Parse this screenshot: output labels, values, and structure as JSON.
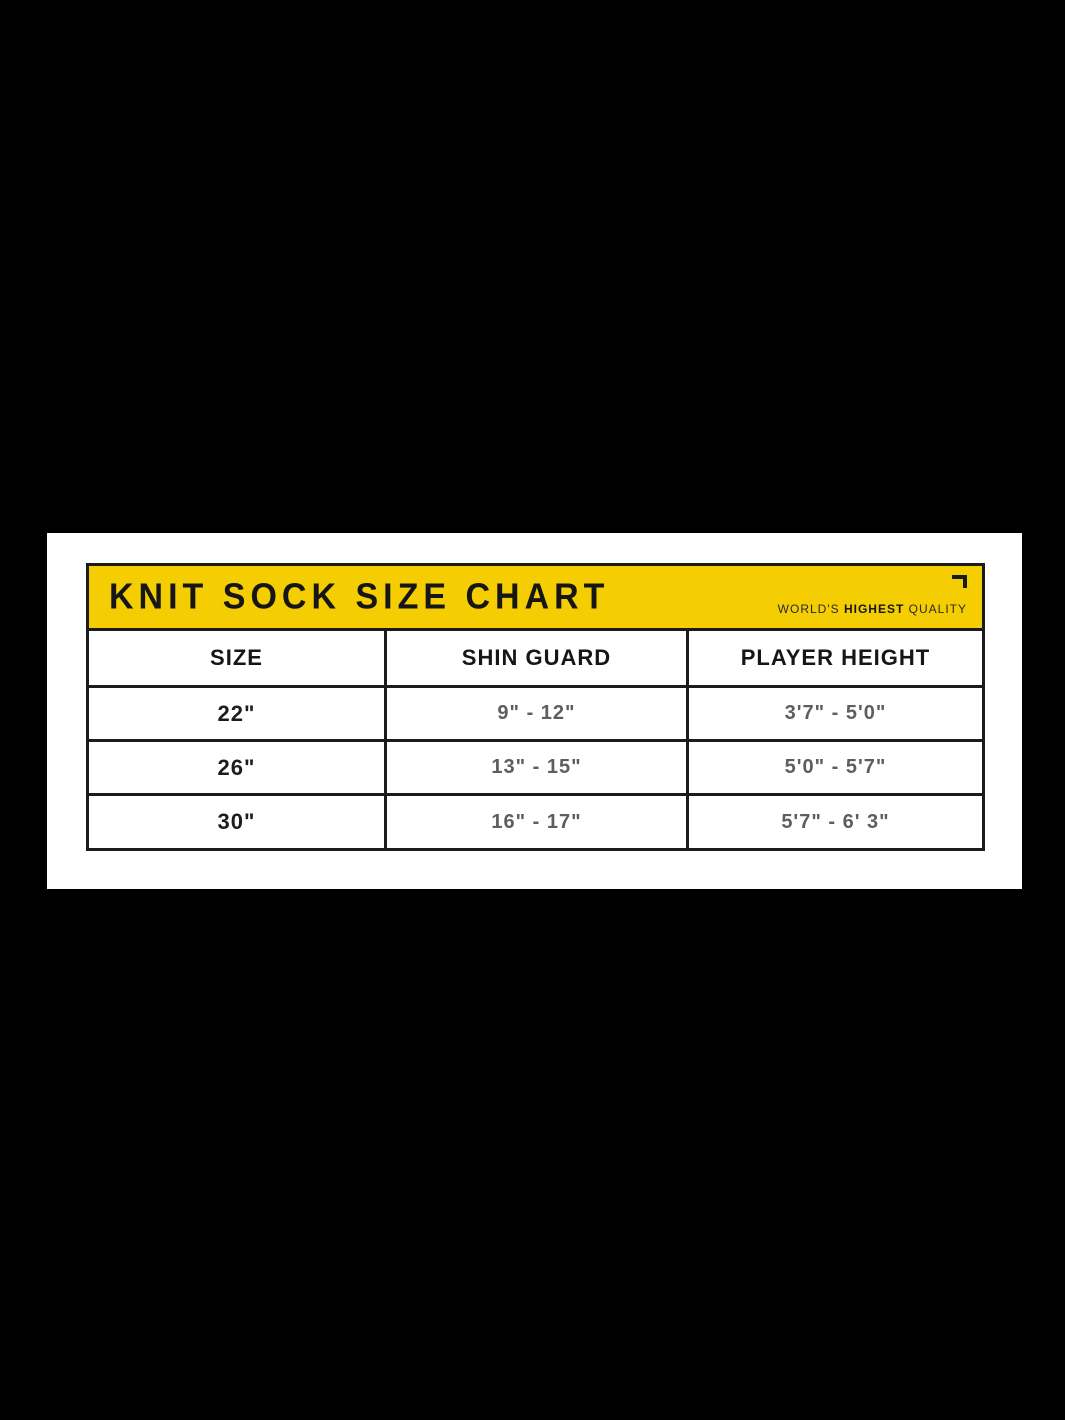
{
  "banner": {
    "title": "KNIT SOCK SIZE CHART",
    "tagline_prefix": "WORLD'S ",
    "tagline_bold": "HIGHEST",
    "tagline_suffix": " QUALITY"
  },
  "chart_data": {
    "type": "table",
    "title": "KNIT SOCK SIZE CHART",
    "columns": [
      "SIZE",
      "SHIN GUARD",
      "PLAYER HEIGHT"
    ],
    "rows": [
      [
        "22\"",
        "9\" - 12\"",
        "3'7\" - 5'0\""
      ],
      [
        "26\"",
        "13\" - 15\"",
        "5'0\" - 5'7\""
      ],
      [
        "30\"",
        "16\" - 17\"",
        "5'7\" - 6' 3\""
      ]
    ]
  },
  "colors": {
    "page_background": "#000000",
    "panel_background": "#ffffff",
    "banner_yellow": "#f4cd03",
    "table_border": "#1b1b1b",
    "range_text": "#5e5e5e",
    "title_text": "#161616"
  }
}
